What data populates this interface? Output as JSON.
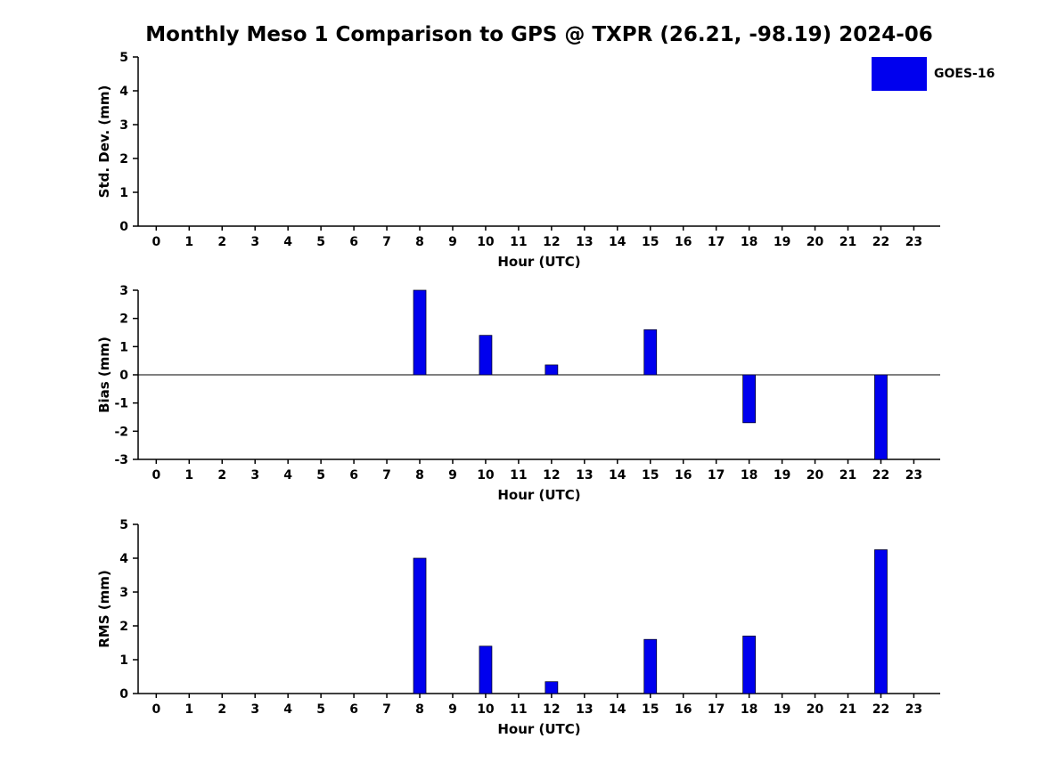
{
  "title": "Monthly Meso 1 Comparison to GPS @ TXPR (26.21, -98.19) 2024-06",
  "legend": {
    "position": "top-right",
    "items": [
      {
        "label": "GOES-16",
        "color": "#0000EE"
      }
    ]
  },
  "chart_data": [
    {
      "type": "bar",
      "ylabel": "Std. Dev. (mm)",
      "xlabel": "Hour (UTC)",
      "categories": [
        0,
        1,
        2,
        3,
        4,
        5,
        6,
        7,
        8,
        9,
        10,
        11,
        12,
        13,
        14,
        15,
        16,
        17,
        18,
        19,
        20,
        21,
        22,
        23
      ],
      "series": [
        {
          "name": "GOES-16",
          "values": [
            0,
            0,
            0,
            0,
            0,
            0,
            0,
            0,
            0,
            0,
            0,
            0,
            0,
            0,
            0,
            0,
            0,
            0,
            0,
            0,
            0,
            0,
            0,
            0
          ]
        }
      ],
      "ylim": [
        0,
        5
      ],
      "yticks": [
        0,
        1,
        2,
        3,
        4,
        5
      ],
      "grid": false
    },
    {
      "type": "bar",
      "ylabel": "Bias (mm)",
      "xlabel": "Hour (UTC)",
      "categories": [
        0,
        1,
        2,
        3,
        4,
        5,
        6,
        7,
        8,
        9,
        10,
        11,
        12,
        13,
        14,
        15,
        16,
        17,
        18,
        19,
        20,
        21,
        22,
        23
      ],
      "series": [
        {
          "name": "GOES-16",
          "values": [
            0,
            0,
            0,
            0,
            0,
            0,
            0,
            0,
            3.0,
            0,
            1.4,
            0,
            0.35,
            0,
            0,
            1.6,
            0,
            0,
            -1.7,
            0,
            0,
            0,
            -3.0,
            0
          ]
        }
      ],
      "ylim": [
        -3,
        3
      ],
      "yticks": [
        -3,
        -2,
        -1,
        0,
        1,
        2,
        3
      ],
      "grid": false
    },
    {
      "type": "bar",
      "ylabel": "RMS (mm)",
      "xlabel": "Hour (UTC)",
      "categories": [
        0,
        1,
        2,
        3,
        4,
        5,
        6,
        7,
        8,
        9,
        10,
        11,
        12,
        13,
        14,
        15,
        16,
        17,
        18,
        19,
        20,
        21,
        22,
        23
      ],
      "series": [
        {
          "name": "GOES-16",
          "values": [
            0,
            0,
            0,
            0,
            0,
            0,
            0,
            0,
            4.0,
            0,
            1.4,
            0,
            0.35,
            0,
            0,
            1.6,
            0,
            0,
            1.7,
            0,
            0,
            0,
            4.25,
            0
          ]
        }
      ],
      "ylim": [
        0,
        5
      ],
      "yticks": [
        0,
        1,
        2,
        3,
        4,
        5
      ],
      "grid": false
    }
  ]
}
